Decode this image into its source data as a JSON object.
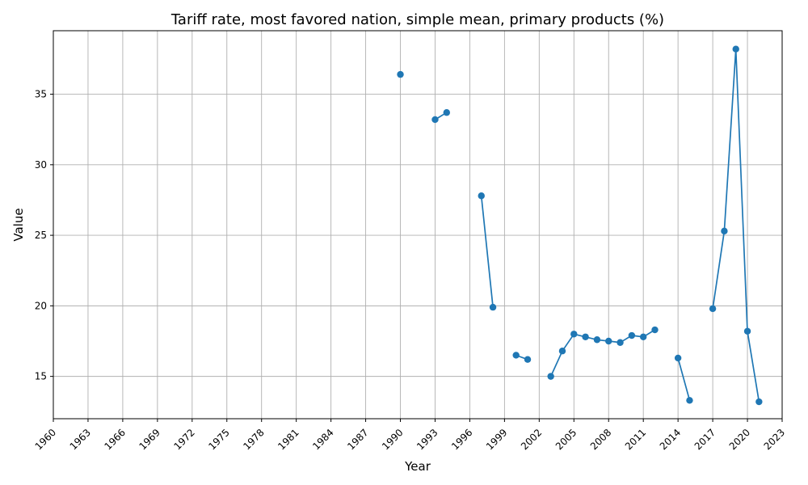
{
  "chart_data": {
    "type": "line",
    "title": "Tariff rate, most favored nation, simple mean, primary products (%)",
    "xlabel": "Year",
    "ylabel": "Value",
    "xlim": [
      1960,
      2023
    ],
    "ylim": [
      12.0,
      39.5
    ],
    "xticks": [
      1960,
      1963,
      1966,
      1969,
      1972,
      1975,
      1978,
      1981,
      1984,
      1987,
      1990,
      1993,
      1996,
      1999,
      2002,
      2005,
      2008,
      2011,
      2014,
      2017,
      2020,
      2023
    ],
    "yticks": [
      15,
      20,
      25,
      30,
      35
    ],
    "grid": true,
    "color": "#1f77b4",
    "series": [
      {
        "x": [
          1990,
          1991,
          1992,
          1993,
          1994,
          1995,
          1996,
          1997,
          1998,
          1999,
          2000,
          2001,
          2002,
          2003,
          2004,
          2005,
          2006,
          2007,
          2008,
          2009,
          2010,
          2011,
          2012,
          2013,
          2014,
          2015,
          2016,
          2017,
          2018,
          2019,
          2020,
          2021
        ],
        "values": [
          36.4,
          null,
          null,
          33.2,
          33.7,
          null,
          null,
          27.8,
          19.9,
          null,
          16.5,
          16.2,
          null,
          15.0,
          16.8,
          18.0,
          17.8,
          17.6,
          17.5,
          17.4,
          17.9,
          17.8,
          18.3,
          null,
          16.3,
          13.3,
          null,
          19.8,
          25.3,
          38.2,
          18.2,
          13.2
        ]
      }
    ]
  }
}
